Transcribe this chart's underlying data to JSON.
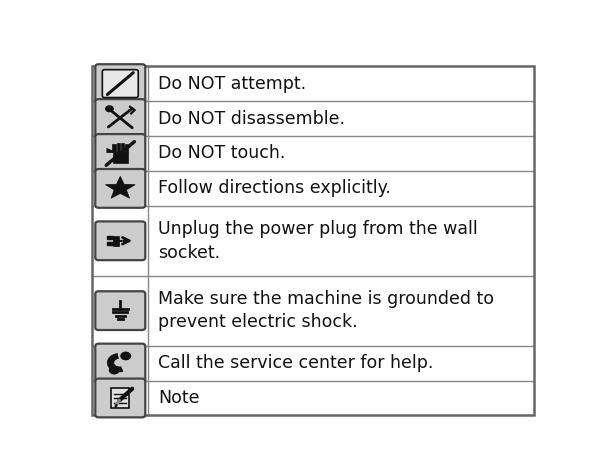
{
  "figsize": [
    6.08,
    4.75
  ],
  "dpi": 100,
  "bg_color": "#ffffff",
  "border_color": "#666666",
  "grid_color": "#888888",
  "rows": [
    {
      "text": "Do NOT attempt.",
      "lines": 1
    },
    {
      "text": "Do NOT disassemble.",
      "lines": 1
    },
    {
      "text": "Do NOT touch.",
      "lines": 1
    },
    {
      "text": "Follow directions explicitly.",
      "lines": 1
    },
    {
      "text": "Unplug the power plug from the wall\nsocket.",
      "lines": 2
    },
    {
      "text": "Make sure the machine is grounded to\nprevent electric shock.",
      "lines": 2
    },
    {
      "text": "Call the service center for help.",
      "lines": 1
    },
    {
      "text": "Note",
      "lines": 1
    }
  ],
  "font_size": 12.5,
  "icon_bg": "#cccccc",
  "icon_fg": "#111111",
  "icon_border": "#444444",
  "lw_outer": 1.8,
  "lw_grid": 1.0,
  "lw_icon": 1.5,
  "lw_icon_thick": 2.5
}
